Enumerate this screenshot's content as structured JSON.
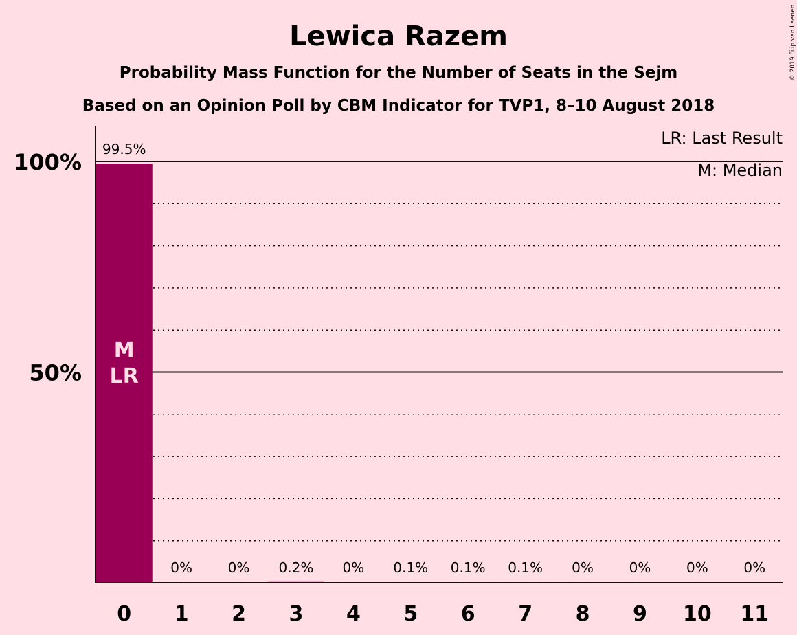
{
  "chart_data": {
    "type": "bar",
    "title": "Lewica Razem",
    "subtitle": "Probability Mass Function for the Number of Seats in the Sejm",
    "subtitle2": "Based on an Opinion Poll by CBM Indicator for TVP1, 8–10 August 2018",
    "copyright": "© 2019 Filip van Laenen",
    "categories": [
      "0",
      "1",
      "2",
      "3",
      "4",
      "5",
      "6",
      "7",
      "8",
      "9",
      "10",
      "11"
    ],
    "values": [
      99.5,
      0,
      0,
      0.2,
      0,
      0.1,
      0.1,
      0.1,
      0,
      0,
      0,
      0
    ],
    "value_labels": [
      "99.5%",
      "0%",
      "0%",
      "0.2%",
      "0%",
      "0.1%",
      "0.1%",
      "0.1%",
      "0%",
      "0%",
      "0%",
      "0%"
    ],
    "bar_marks": {
      "index": 0,
      "lines": [
        "M",
        "LR"
      ]
    },
    "yticks": [
      {
        "value": 50,
        "label": "50%"
      },
      {
        "value": 100,
        "label": "100%"
      }
    ],
    "ylim": [
      0,
      100
    ],
    "grid": "dotted every 10%",
    "legend": [
      "LR: Last Result",
      "M: Median"
    ],
    "legend_position": "top-right",
    "colors": {
      "background": "#ffdfe5",
      "bar": "#990055",
      "text": "#1a0b0e",
      "bar_text": "#ffdfe5"
    }
  }
}
